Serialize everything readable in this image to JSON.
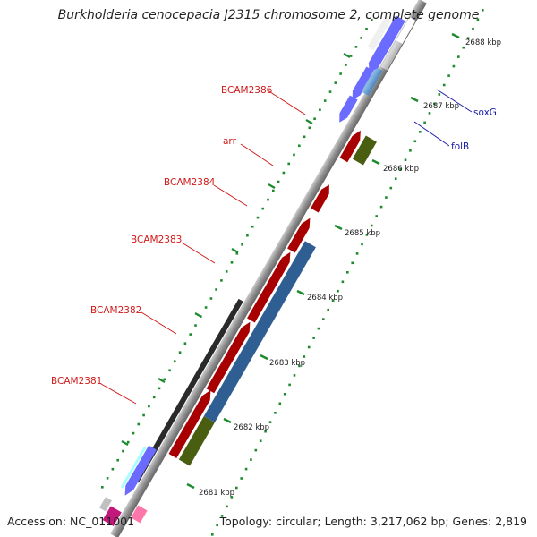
{
  "title": "Burkholderia cenocepacia J2315 chromosome 2, complete genome",
  "accession": "Accession: NC_011001",
  "summary": "Topology: circular; Length: 3,217,062 bp; Genes: 2,819",
  "ticks": [
    "2681 kbp",
    "2682 kbp",
    "2683 kbp",
    "2684 kbp",
    "2685 kbp",
    "2686 kbp",
    "2687 kbp",
    "2688 kbp"
  ],
  "genes": {
    "bcam2381": "BCAM2381",
    "bcam2382": "BCAM2382",
    "bcam2383": "BCAM2383",
    "bcam2384": "BCAM2384",
    "arr": "arr",
    "bcam2386": "BCAM2386",
    "soxg": "soxG",
    "folb": "folB"
  },
  "colors": {
    "cds_forward": "#ee1111",
    "cds_reverse": "#1111ee",
    "blast_blue": "#4b86c0",
    "blast_green": "#6e8a22",
    "label_red": "#d11919",
    "label_blue": "#1a1aa8",
    "dots": "#1c8a2d",
    "backbone": "#9a9a9a"
  }
}
